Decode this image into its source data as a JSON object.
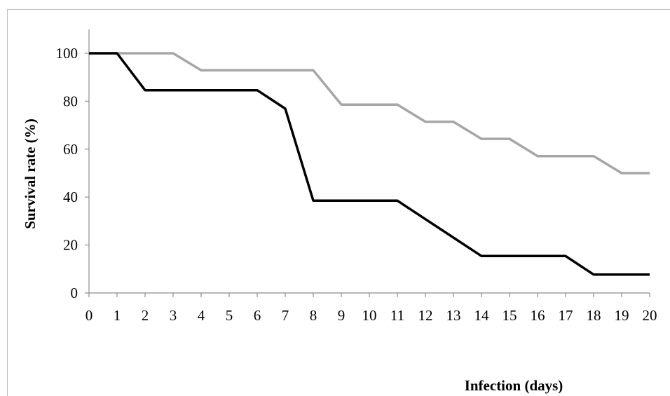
{
  "chart_data": {
    "type": "line",
    "title": "",
    "xlabel": "Infection (days)",
    "ylabel": "Survival rate  (%)",
    "x": [
      0,
      1,
      2,
      3,
      4,
      5,
      6,
      7,
      8,
      9,
      10,
      11,
      12,
      13,
      14,
      15,
      16,
      17,
      18,
      19,
      20
    ],
    "xlim": [
      0,
      20
    ],
    "ylim": [
      0,
      100
    ],
    "yticks": [
      0,
      20,
      40,
      60,
      80,
      100
    ],
    "grid": false,
    "legend": "none",
    "series": [
      {
        "color": "#a6a6a6",
        "values": [
          100,
          100,
          100,
          100,
          92.9,
          92.9,
          92.9,
          92.9,
          92.9,
          78.6,
          78.6,
          78.6,
          71.4,
          71.4,
          64.3,
          64.3,
          57.1,
          57.1,
          57.1,
          50,
          50
        ]
      },
      {
        "color": "#000000",
        "values": [
          100,
          100,
          84.6,
          84.6,
          84.6,
          84.6,
          84.6,
          76.9,
          38.5,
          38.5,
          38.5,
          38.5,
          30.8,
          23.1,
          15.4,
          15.4,
          15.4,
          15.4,
          7.7,
          7.7,
          7.7
        ]
      }
    ]
  }
}
